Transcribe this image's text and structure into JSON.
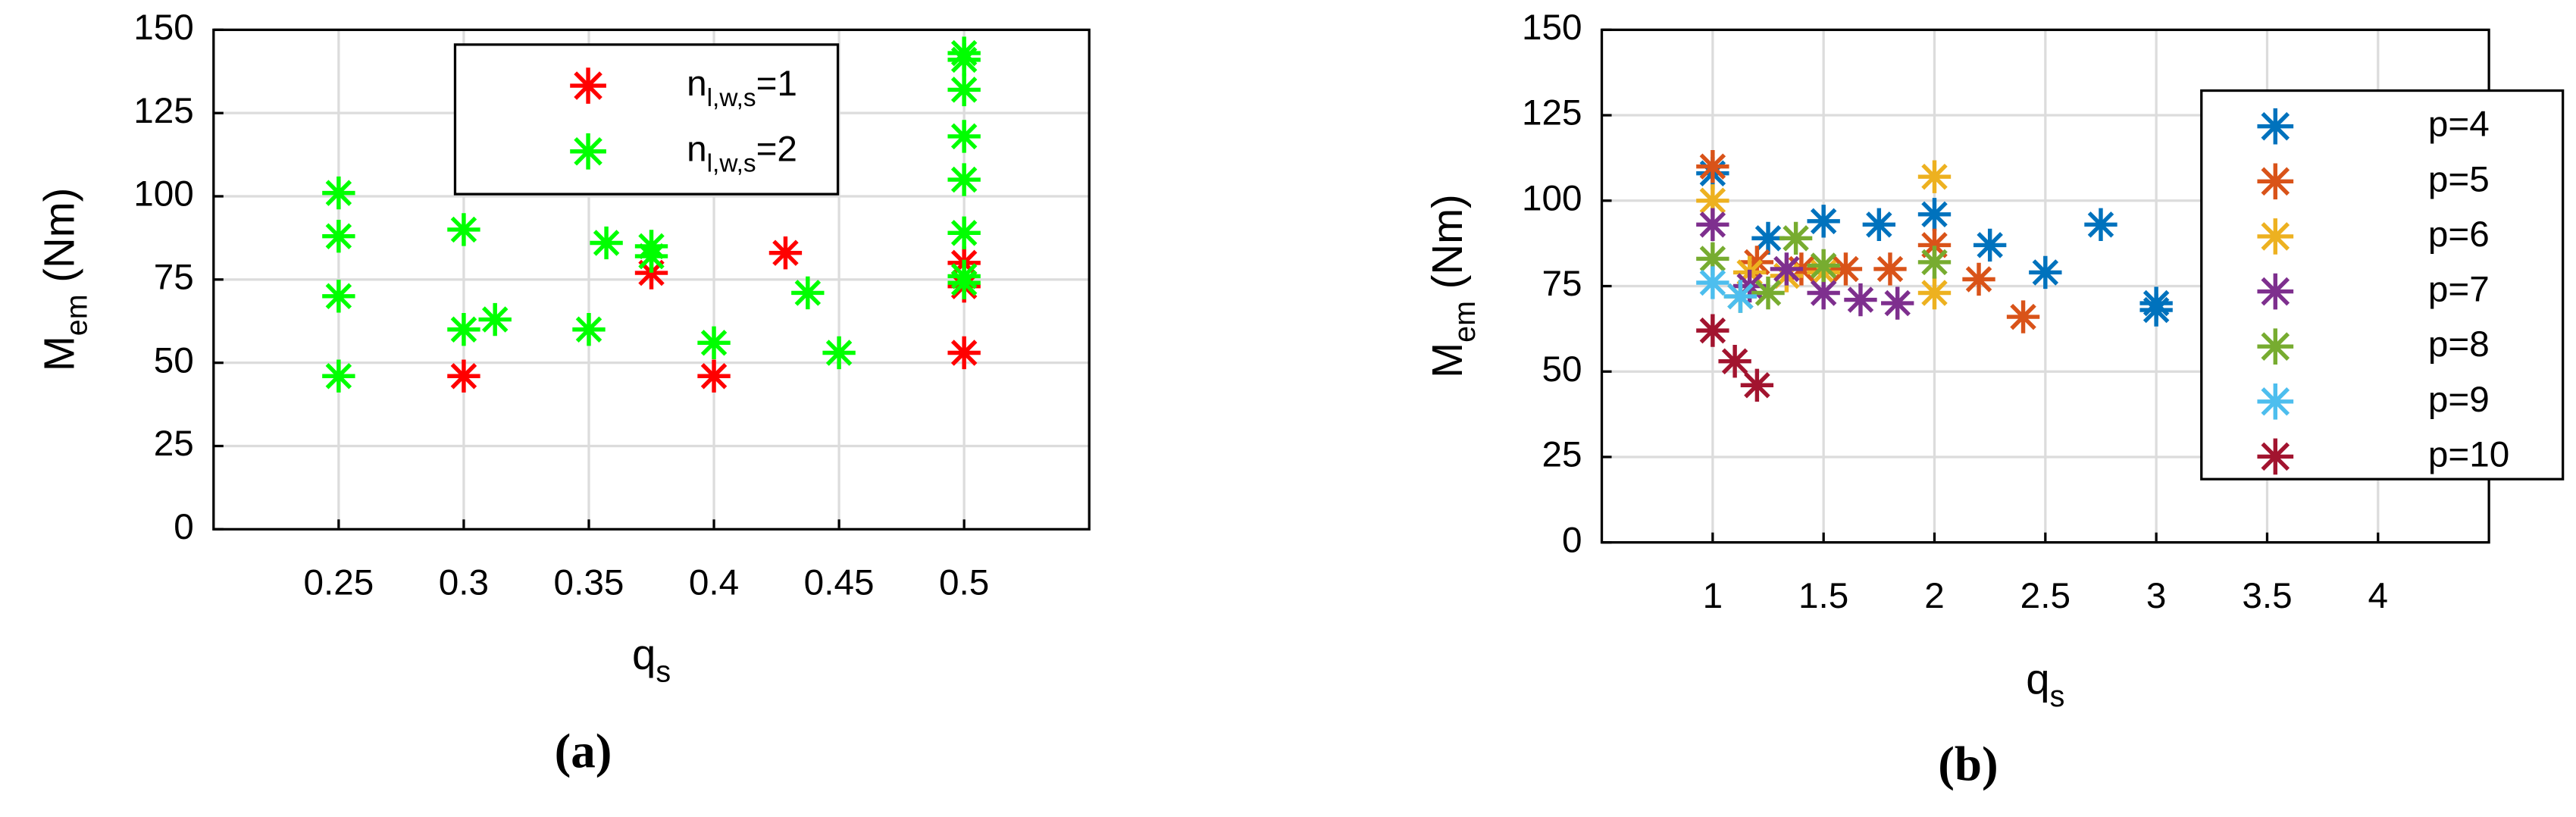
{
  "chart_data": [
    {
      "type": "scatter",
      "caption": "(a)",
      "x_label": [
        "q",
        "s"
      ],
      "y_label": [
        "M",
        "em",
        " (Nm)"
      ],
      "xlim": [
        0.2,
        0.55
      ],
      "xticks": [
        0.25,
        0.3,
        0.35,
        0.4,
        0.45,
        0.5
      ],
      "ylim": [
        0,
        150
      ],
      "yticks": [
        0,
        25,
        50,
        75,
        100,
        125,
        150
      ],
      "grid": true,
      "legend": "upper center",
      "series": [
        {
          "name": [
            "n",
            "l,w,s",
            "=1"
          ],
          "color": "#ff0000",
          "x": [
            0.3,
            0.375,
            0.4,
            0.4286,
            0.5,
            0.5,
            0.5
          ],
          "values": [
            46,
            77,
            46,
            83,
            53,
            73,
            80
          ]
        },
        {
          "name": [
            "n",
            "l,w,s",
            "=2"
          ],
          "color": "#00ff00",
          "x": [
            0.25,
            0.25,
            0.25,
            0.25,
            0.3,
            0.3,
            0.3125,
            0.35,
            0.357,
            0.375,
            0.375,
            0.4,
            0.4375,
            0.45,
            0.5,
            0.5,
            0.5,
            0.5,
            0.5,
            0.5,
            0.5,
            0.5
          ],
          "values": [
            46,
            70,
            88,
            101,
            60,
            90,
            63,
            60,
            86,
            82,
            85,
            56,
            71,
            53,
            74,
            76,
            89,
            105,
            118,
            132,
            141,
            143
          ]
        }
      ]
    },
    {
      "type": "scatter",
      "caption": "(b)",
      "x_label": [
        "q",
        "s"
      ],
      "y_label": [
        "M",
        "em",
        " (Nm)"
      ],
      "xlim": [
        0.5,
        4.5
      ],
      "xticks": [
        1,
        1.5,
        2,
        2.5,
        3,
        3.5,
        4
      ],
      "ylim": [
        0,
        150
      ],
      "yticks": [
        0,
        25,
        50,
        75,
        100,
        125,
        150
      ],
      "grid": true,
      "legend": "right",
      "series": [
        {
          "name": [
            "p=4"
          ],
          "color": "#0072bd",
          "x": [
            1,
            1.25,
            1.5,
            1.75,
            2,
            2.25,
            2.5,
            2.75,
            3,
            3
          ],
          "values": [
            108,
            89,
            94,
            93,
            96,
            87,
            79,
            93,
            68,
            70
          ]
        },
        {
          "name": [
            "p=5"
          ],
          "color": "#d95319",
          "x": [
            1,
            1.2,
            1.4,
            1.6,
            1.8,
            2,
            2.2,
            2.4
          ],
          "values": [
            110,
            82,
            80,
            80,
            80,
            87,
            77,
            66
          ]
        },
        {
          "name": [
            "p=6"
          ],
          "color": "#edb120",
          "x": [
            1,
            1.1667,
            1.3333,
            1.5,
            2,
            2
          ],
          "values": [
            100,
            79,
            78,
            79,
            107,
            73
          ]
        },
        {
          "name": [
            "p=7"
          ],
          "color": "#7e2f8e",
          "x": [
            1,
            1.1667,
            1.3333,
            1.5,
            1.6667,
            1.8333
          ],
          "values": [
            93,
            75,
            80,
            73,
            71,
            70
          ]
        },
        {
          "name": [
            "p=8"
          ],
          "color": "#77ac30",
          "x": [
            1,
            1.125,
            1.25,
            1.375,
            1.5,
            2
          ],
          "values": [
            83,
            72,
            73,
            89,
            81,
            82
          ]
        },
        {
          "name": [
            "p=9"
          ],
          "color": "#4dbeee",
          "x": [
            1,
            1.125
          ],
          "values": [
            76,
            72
          ]
        },
        {
          "name": [
            "p=10"
          ],
          "color": "#a2142f",
          "x": [
            1,
            1.1,
            1.2
          ],
          "values": [
            62,
            53,
            46
          ]
        }
      ]
    }
  ]
}
